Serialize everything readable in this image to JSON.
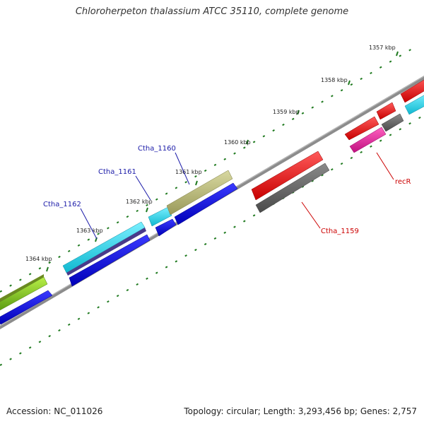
{
  "title": "Chloroherpeton thalassium ATCC 35110, complete genome",
  "footer": {
    "accession": "Accession: NC_011026",
    "summary": "Topology: circular; Length: 3,293,456 bp; Genes: 2,757"
  },
  "ticks": [
    {
      "label": "1357 kbp"
    },
    {
      "label": "1358 kbp"
    },
    {
      "label": "1359 kbp"
    },
    {
      "label": "1360 kbp"
    },
    {
      "label": "1361 kbp"
    },
    {
      "label": "1362 kbp"
    },
    {
      "label": "1363 kbp"
    },
    {
      "label": "1364 kbp"
    }
  ],
  "genes": [
    {
      "label": "Ctha_1160"
    },
    {
      "label": "Ctha_1161"
    },
    {
      "label": "Ctha_1162"
    },
    {
      "label": "recR"
    },
    {
      "label": "Ctha_1159"
    }
  ],
  "colors": {
    "backbone": "#8c8c8c",
    "tick": "#1f7a1f",
    "label_blue": "#1a1aa8",
    "label_red": "#cc0000",
    "red": "#ee1111",
    "blue": "#1010e0",
    "cyan": "#22d0e8",
    "olive": "#b8b878",
    "green": "#88c820",
    "grey": "#666666",
    "magenta": "#e0209a",
    "purple": "#4a3a8a"
  }
}
